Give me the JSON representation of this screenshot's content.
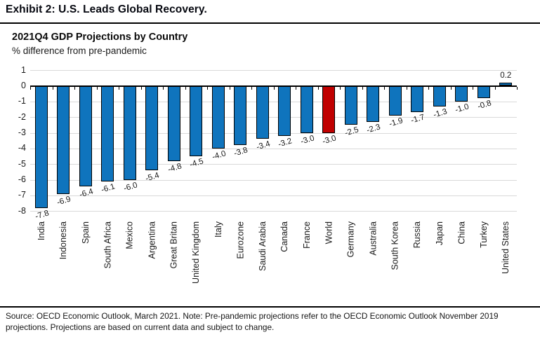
{
  "page": {
    "exhibit_title": "Exhibit 2: U.S. Leads Global Recovery.",
    "source_note_line1": "Source: OECD Economic Outlook, March 2021. Note: Pre-pandemic projections refer to the OECD Economic Outlook November 2019",
    "source_note_line2": "projections. Projections are based on current data and subject to change."
  },
  "chart_data": {
    "type": "bar",
    "title": "2021Q4 GDP Projections by Country",
    "subtitle": "% difference from pre-pandemic",
    "categories": [
      "India",
      "Indonesia",
      "Spain",
      "South Africa",
      "Mexico",
      "Argentina",
      "Great Britan",
      "United Kingdom",
      "Italy",
      "Eurozone",
      "Saudi Arabia",
      "Canada",
      "France",
      "World",
      "Germany",
      "Australia",
      "South Korea",
      "Russia",
      "Japan",
      "China",
      "Turkey",
      "United States"
    ],
    "values": [
      -7.8,
      -6.9,
      -6.4,
      -6.1,
      -6.0,
      -5.4,
      -4.8,
      -4.5,
      -4.0,
      -3.8,
      -3.4,
      -3.2,
      -3.0,
      -3.0,
      -2.5,
      -2.3,
      -1.9,
      -1.7,
      -1.3,
      -1.0,
      -0.8,
      0.2
    ],
    "highlight_category": "World",
    "bar_color": "#0f74bd",
    "highlight_color": "#c00000",
    "gridline_color": "#d9d9d9",
    "axis_color": "#000000",
    "ylim": [
      -8,
      1
    ],
    "yticks": [
      1,
      0,
      -1,
      -2,
      -3,
      -4,
      -5,
      -6,
      -7,
      -8
    ],
    "grid": true,
    "value_labels": true,
    "legend": "none",
    "xlabel": "",
    "ylabel": "% difference from pre-pandemic"
  }
}
